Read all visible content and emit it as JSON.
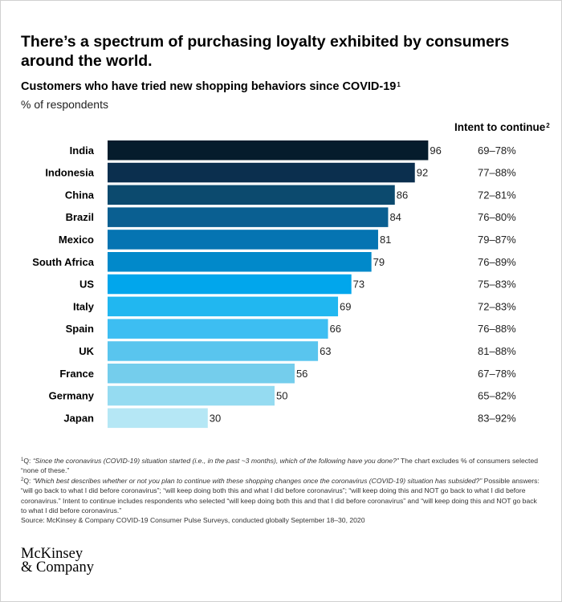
{
  "title": "There’s a spectrum of purchasing loyalty exhibited by consumers around the world.",
  "subtitle": "Customers who have tried new shopping behaviors since COVID-19",
  "subtitle_note": "1",
  "unit_label": "% of respondents",
  "intent_header": "Intent to continue",
  "intent_header_note": "2",
  "chart_data": {
    "type": "bar",
    "orientation": "horizontal",
    "categories": [
      "India",
      "Indonesia",
      "China",
      "Brazil",
      "Mexico",
      "South Africa",
      "US",
      "Italy",
      "Spain",
      "UK",
      "France",
      "Germany",
      "Japan"
    ],
    "values": [
      96,
      92,
      86,
      84,
      81,
      79,
      73,
      69,
      66,
      63,
      56,
      50,
      30
    ],
    "intent_to_continue": [
      "69–78%",
      "77–88%",
      "72–81%",
      "76–80%",
      "79–87%",
      "76–89%",
      "75–83%",
      "72–83%",
      "76–88%",
      "81–88%",
      "67–78%",
      "65–82%",
      "83–92%"
    ],
    "xlim": [
      0,
      100
    ],
    "grid": false,
    "legend": "none",
    "bar_colors": [
      "#051c2c",
      "#0b2f4e",
      "#0c4a6e",
      "#0a5f91",
      "#0574b2",
      "#0189ca",
      "#01a6ec",
      "#21b7f0",
      "#3dbef2",
      "#59c5ee",
      "#74cdec",
      "#95dbf1",
      "#b5e7f5"
    ]
  },
  "footnotes": {
    "note1_marker": "1",
    "note1_prefix": "Q: ",
    "note1_question": "“Since the coronavirus (COVID-19) situation started (i.e., in the past ~3 months), which of the following have you done?”",
    "note1_rest": " The chart excludes % of consumers selected “none of these.”",
    "note2_marker": "2",
    "note2_prefix": "Q: ",
    "note2_question": "“Which best describes whether or not you plan to continue with these shopping changes once the coronavirus (COVID-19) situation has subsided?”",
    "note2_rest": " Possible answers: “will go back to what I did before coronavirus”; “will keep doing both this and what I did before coronavirus”; “will keep doing this and NOT go back to what I did before coronavirus.” Intent to continue includes respondents who selected “will keep doing both this and that I did before coronavirus” and “will keep doing this and NOT go back to what I did before coronavirus.”",
    "source": "Source: McKinsey & Company COVID-19 Consumer Pulse Surveys, conducted globally September 18–30, 2020"
  },
  "logo": {
    "line1": "McKinsey",
    "line2": "& Company"
  }
}
